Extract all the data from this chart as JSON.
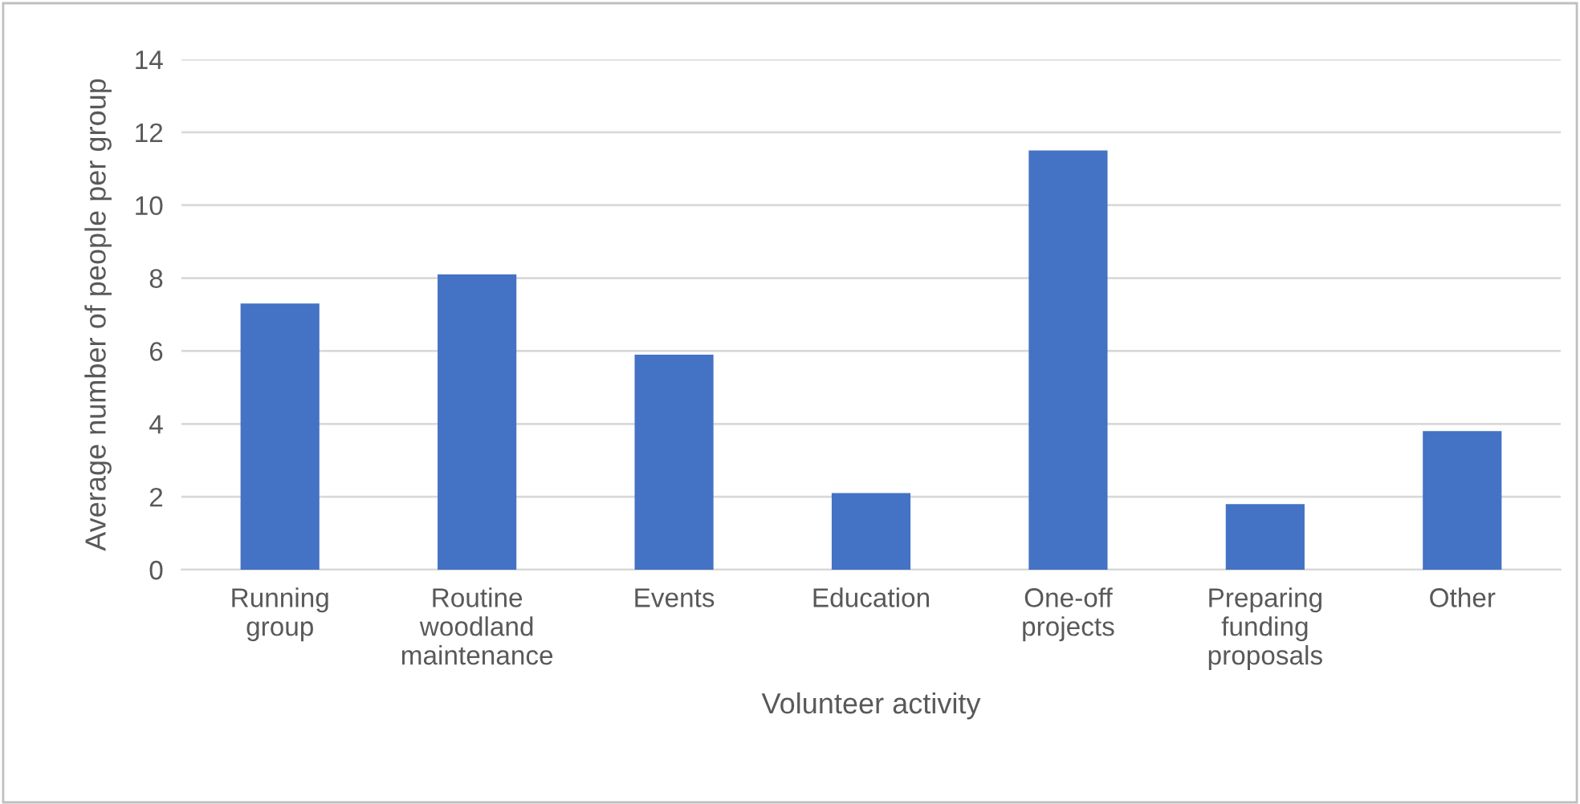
{
  "chart_data": {
    "type": "bar",
    "xlabel": "Volunteer activity",
    "ylabel": "Average number of people per group",
    "categories": [
      "Running group",
      "Routine woodland maintenance",
      "Events",
      "Education",
      "One-off projects",
      "Preparing funding proposals",
      "Other"
    ],
    "values": [
      7.3,
      8.1,
      5.9,
      2.1,
      11.5,
      1.8,
      3.8
    ],
    "color": "#4472c4",
    "ylim": [
      0,
      14
    ],
    "yticks": [
      0,
      2,
      4,
      6,
      8,
      10,
      12,
      14
    ],
    "grid": "y",
    "legend": false
  }
}
